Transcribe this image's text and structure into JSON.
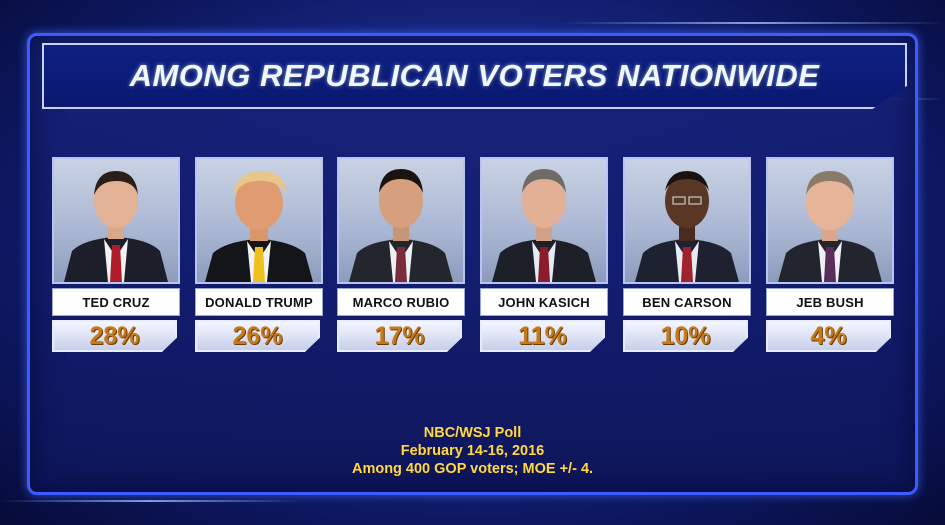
{
  "title": "AMONG REPUBLICAN VOTERS NATIONWIDE",
  "candidates": [
    {
      "name": "TED CRUZ",
      "pct": "28%",
      "value": 28,
      "tie": "#b01c2a"
    },
    {
      "name": "DONALD TRUMP",
      "pct": "26%",
      "value": 26,
      "tie": "#f0c020"
    },
    {
      "name": "MARCO RUBIO",
      "pct": "17%",
      "value": 17,
      "tie": "#7a2c3c"
    },
    {
      "name": "JOHN KASICH",
      "pct": "11%",
      "value": 11,
      "tie": "#8a1e2e"
    },
    {
      "name": "BEN CARSON",
      "pct": "10%",
      "value": 10,
      "tie": "#a0222c"
    },
    {
      "name": "JEB BUSH",
      "pct": "4%",
      "value": 4,
      "tie": "#5a2e5a"
    }
  ],
  "source": {
    "line1": "NBC/WSJ Poll",
    "line2": "February 14-16, 2016",
    "line3": "Among 400 GOP voters; MOE +/- 4."
  },
  "colors": {
    "panel_border": "#3d5cff",
    "percent_text": "#c67a1a",
    "source_text": "#ffd84a"
  }
}
